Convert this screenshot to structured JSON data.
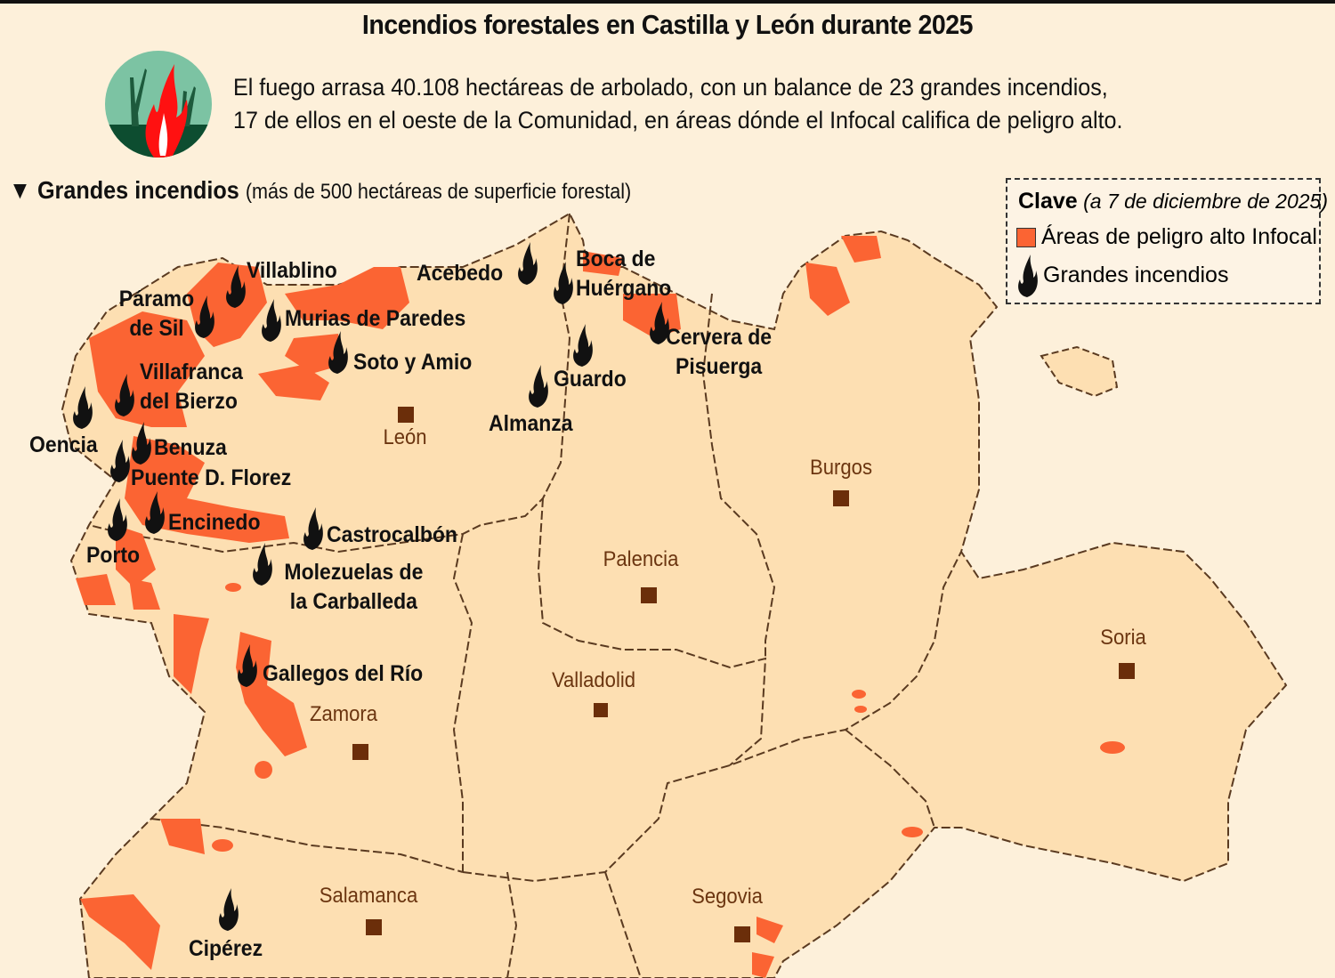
{
  "header": {
    "title": "Incendios forestales en Castilla y León durante 2025",
    "subtitle_line1": "El fuego arrasa 40.108 hectáreas de arbolado, con un balance de 23 grandes incendios,",
    "subtitle_line2": "17 de ellos en el oeste de la Comunidad, en áreas dónde el Infocal califica de peligro alto."
  },
  "section": {
    "title": "Grandes incendios",
    "subtitle": "(más de 500 hectáreas de superficie forestal)"
  },
  "legend": {
    "title": "Clave",
    "date": "(a 7 de diciembre de 2025)",
    "items": [
      {
        "label": "Áreas de peligro alto Infocal",
        "icon": "orange-square"
      },
      {
        "label": "Grandes incendios",
        "icon": "flame-icon"
      }
    ]
  },
  "colors": {
    "danger_area": "#fb6433",
    "region_fill": "#fddfb2",
    "background": "#fdf0da",
    "capital": "#6b2e0a"
  },
  "provinces": [
    "León",
    "Burgos",
    "Palencia",
    "Valladolid",
    "Soria",
    "Zamora",
    "Salamanca",
    "Segovia"
  ],
  "fires": [
    "Villablino",
    "Páramo de Sil",
    "Murias de Paredes",
    "Acebedo",
    "Boca de Huérgano",
    "Cervera de Pisuerga",
    "Soto y Amio",
    "Guardo",
    "Almanza",
    "Villafranca del Bierzo",
    "Oencia",
    "Benuza",
    "Puente D. Florez",
    "Encinedo",
    "Castrocalbón",
    "Porto",
    "Molezuelas de la Carballeda",
    "Gallegos del Río",
    "Cipérez"
  ]
}
